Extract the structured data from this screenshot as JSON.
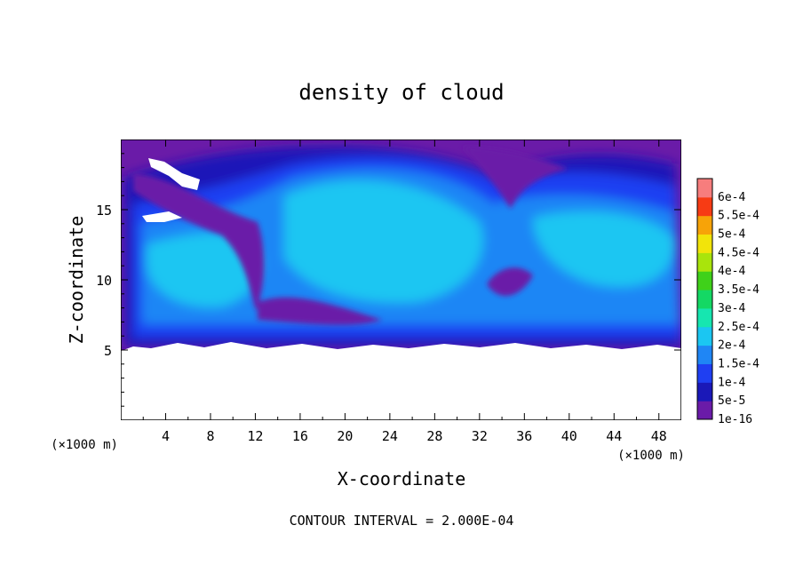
{
  "chart_data": {
    "type": "heatmap",
    "title": "density of cloud",
    "xlabel": "X-coordinate",
    "ylabel": "Z-coordinate",
    "x_unit": "(×1000 m)",
    "y_unit": "(×1000 m)",
    "xlim": [
      0,
      50
    ],
    "ylim": [
      0,
      20
    ],
    "x_ticks": [
      4,
      8,
      12,
      16,
      20,
      24,
      28,
      32,
      36,
      40,
      44,
      48
    ],
    "y_ticks": [
      5,
      10,
      15
    ],
    "footer": "CONTOUR INTERVAL = 2.000E-04",
    "grid": false,
    "legend_position": "right",
    "colorbar": [
      {
        "label": "1e-16",
        "color": "#6a1ba8"
      },
      {
        "label": "5e-5",
        "color": "#1a18b8"
      },
      {
        "label": "1e-4",
        "color": "#1f3ff2"
      },
      {
        "label": "1.5e-4",
        "color": "#1f86f5"
      },
      {
        "label": "2e-4",
        "color": "#1bc6f2"
      },
      {
        "label": "2.5e-4",
        "color": "#16e6b0"
      },
      {
        "label": "3e-4",
        "color": "#14d864"
      },
      {
        "label": "3.5e-4",
        "color": "#3fd11a"
      },
      {
        "label": "4e-4",
        "color": "#a9e40c"
      },
      {
        "label": "4.5e-4",
        "color": "#f2e40a"
      },
      {
        "label": "5e-4",
        "color": "#f7a308"
      },
      {
        "label": "5.5e-4",
        "color": "#f73b14"
      },
      {
        "label": "6e-4",
        "color": "#f77d7d"
      }
    ],
    "field_regions": {
      "cloud_layer_z": [
        5,
        20
      ],
      "cloud_free_z": [
        0,
        5
      ]
    }
  }
}
